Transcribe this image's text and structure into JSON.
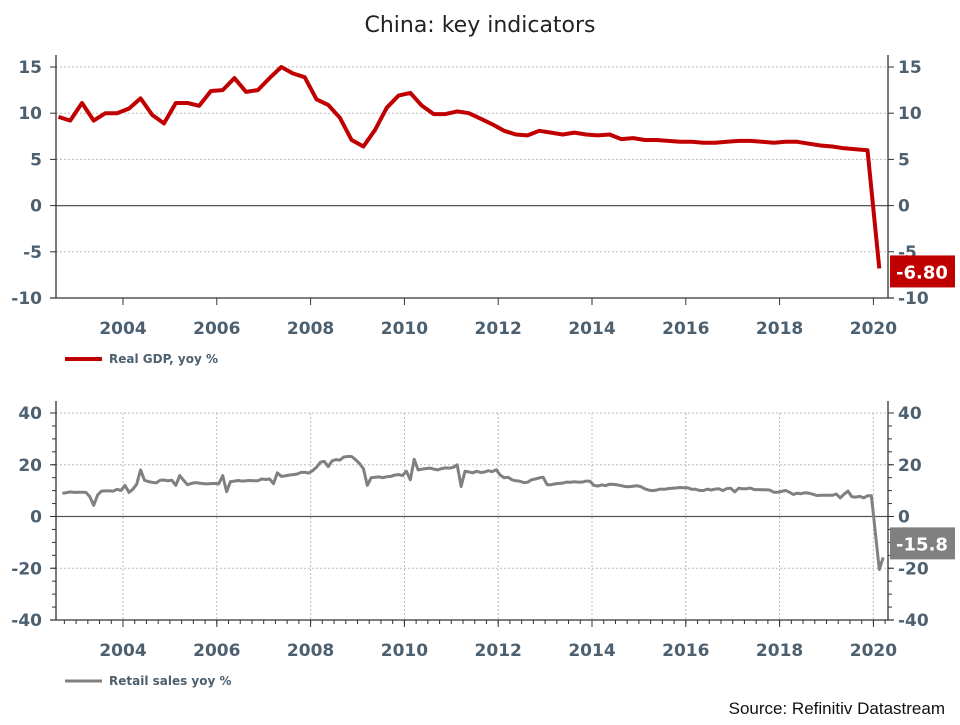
{
  "title": "China: key indicators",
  "source": "Source: Refinitiv Datastream",
  "colors": {
    "gdp": "#c00000",
    "retail": "#808080",
    "axis_text": "#4d6070"
  },
  "chart_data": [
    {
      "type": "line",
      "frequency": "quarterly",
      "x_ticks": [
        "2004",
        "2006",
        "2008",
        "2010",
        "2012",
        "2014",
        "2016",
        "2018",
        "2020"
      ],
      "y_ticks": [
        "15",
        "10",
        "5",
        "0",
        "-5",
        "-10"
      ],
      "ylim": [
        -10,
        15
      ],
      "grid": "horizontal dotted",
      "axes": "left and right",
      "legend_position": "bottom-left",
      "last_value_label": "-6.80",
      "series": [
        {
          "name": "Real GDP, yoy %",
          "color": "#c00000",
          "values_by_year_quarter": {
            "2002": [
              null,
              null,
              9.6,
              9.2
            ],
            "2003": [
              11.1,
              9.2,
              10.0,
              10.0
            ],
            "2004": [
              10.5,
              11.6,
              9.8,
              8.9
            ],
            "2005": [
              11.1,
              11.1,
              10.8,
              12.4
            ],
            "2006": [
              12.5,
              13.8,
              12.3,
              12.5
            ],
            "2007": [
              13.8,
              15.0,
              14.3,
              13.9
            ],
            "2008": [
              11.5,
              10.9,
              9.5,
              7.1
            ],
            "2009": [
              6.4,
              8.2,
              10.6,
              11.9
            ],
            "2010": [
              12.2,
              10.8,
              9.9,
              9.9
            ],
            "2011": [
              10.2,
              10.0,
              9.4,
              8.8
            ],
            "2012": [
              8.1,
              7.7,
              7.6,
              8.1
            ],
            "2013": [
              7.9,
              7.7,
              7.9,
              7.7
            ],
            "2014": [
              7.6,
              7.7,
              7.2,
              7.3
            ],
            "2015": [
              7.1,
              7.1,
              7.0,
              6.9
            ],
            "2016": [
              6.9,
              6.8,
              6.8,
              6.9
            ],
            "2017": [
              7.0,
              7.0,
              6.9,
              6.8
            ],
            "2018": [
              6.9,
              6.9,
              6.7,
              6.5
            ],
            "2019": [
              6.4,
              6.2,
              6.1,
              6.0
            ],
            "2020": [
              -6.8
            ]
          }
        }
      ]
    },
    {
      "type": "line",
      "frequency": "monthly",
      "x_ticks": [
        "2004",
        "2006",
        "2008",
        "2010",
        "2012",
        "2014",
        "2016",
        "2018",
        "2020"
      ],
      "y_ticks": [
        "40",
        "20",
        "0",
        "-20",
        "-40"
      ],
      "ylim": [
        -40,
        40
      ],
      "grid": "horizontal and vertical dotted",
      "axes": "left and right",
      "legend_position": "bottom-left",
      "last_value_label": "-15.8",
      "series": [
        {
          "name": "Retail sales yoy %",
          "color": "#808080",
          "values_by_year_month": {
            "2002": [
              null,
              null,
              null,
              null,
              null,
              null,
              null,
              null,
              9.0,
              9.2,
              9.5,
              9.3
            ],
            "2003": [
              9.4,
              9.4,
              9.3,
              7.7,
              4.3,
              8.3,
              9.8,
              9.9,
              9.9,
              9.8,
              10.5,
              10.1
            ],
            "2004": [
              12.0,
              9.3,
              10.5,
              12.5,
              18.0,
              14.0,
              13.5,
              13.2,
              13.0,
              14.0,
              14.1,
              13.8
            ],
            "2005": [
              14.0,
              12.0,
              15.8,
              14.0,
              12.3,
              12.8,
              13.1,
              12.9,
              12.7,
              12.6,
              12.7,
              12.8
            ],
            "2006": [
              12.6,
              15.8,
              9.6,
              13.5,
              13.7,
              13.9,
              13.7,
              13.8,
              13.9,
              13.8,
              13.8,
              14.5
            ],
            "2007": [
              14.3,
              14.5,
              12.7,
              16.9,
              15.5,
              15.7,
              16.0,
              16.2,
              16.4,
              17.0,
              17.1,
              16.8
            ],
            "2008": [
              17.7,
              19.0,
              21.0,
              21.3,
              19.3,
              21.5,
              22.0,
              21.8,
              23.0,
              23.2,
              23.2,
              22.0
            ],
            "2009": [
              20.5,
              18.5,
              12.0,
              15.0,
              15.2,
              15.3,
              15.0,
              15.4,
              15.5,
              16.0,
              16.2,
              15.8
            ],
            "2010": [
              17.5,
              14.2,
              22.1,
              18.0,
              18.3,
              18.5,
              18.7,
              18.3,
              18.0,
              18.5,
              18.8,
              18.7
            ],
            "2011": [
              19.0,
              20.0,
              11.6,
              17.5,
              17.2,
              16.9,
              17.5,
              17.0,
              17.2,
              17.7,
              17.3,
              18.1
            ],
            "2012": [
              16.0,
              15.0,
              15.2,
              14.2,
              13.8,
              13.7,
              13.1,
              13.2,
              14.2,
              14.5,
              14.9,
              15.2
            ],
            "2013": [
              12.3,
              12.3,
              12.6,
              12.8,
              12.9,
              13.3,
              13.2,
              13.4,
              13.3,
              13.3,
              13.7,
              13.6
            ],
            "2014": [
              12.0,
              11.8,
              12.2,
              11.9,
              12.5,
              12.4,
              12.2,
              11.9,
              11.6,
              11.5,
              11.7,
              11.9
            ],
            "2015": [
              11.5,
              10.7,
              10.2,
              10.0,
              10.2,
              10.6,
              10.5,
              10.8,
              10.9,
              11.0,
              11.2,
              11.1
            ],
            "2016": [
              11.1,
              10.5,
              10.5,
              10.1,
              10.0,
              10.6,
              10.2,
              10.6,
              10.7,
              10.0,
              10.8,
              10.9
            ],
            "2017": [
              9.5,
              10.9,
              10.7,
              10.7,
              11.0,
              10.4,
              10.4,
              10.3,
              10.3,
              10.2,
              9.4,
              9.4
            ],
            "2018": [
              9.7,
              10.1,
              9.4,
              8.5,
              9.0,
              8.8,
              9.2,
              9.0,
              8.6,
              8.1,
              8.2,
              8.2
            ],
            "2019": [
              8.2,
              8.2,
              8.7,
              7.2,
              8.6,
              9.8,
              7.6,
              7.5,
              7.8,
              7.2,
              8.0,
              8.0
            ],
            "2020": [
              null,
              -20.5,
              -15.8
            ]
          }
        }
      ]
    }
  ]
}
